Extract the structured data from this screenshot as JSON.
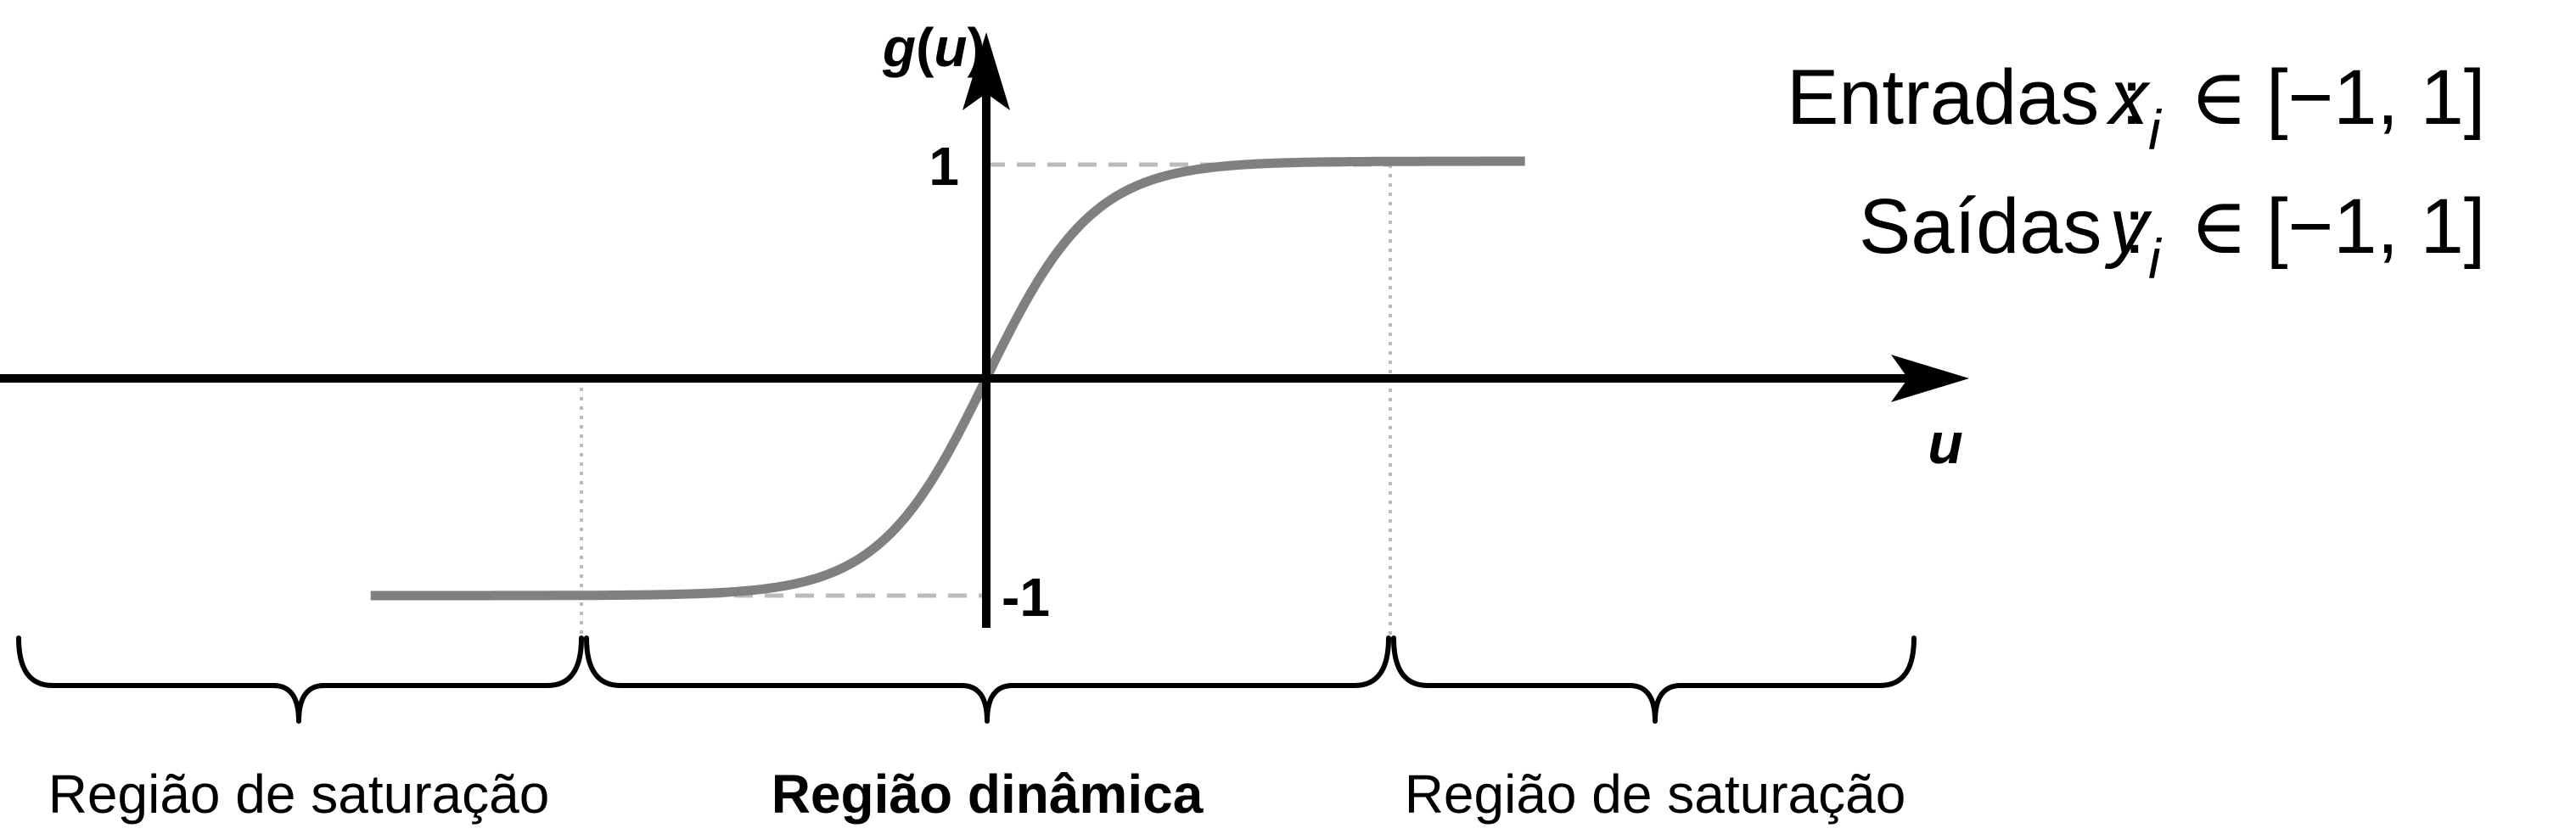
{
  "axes": {
    "y_label": {
      "function": "g",
      "open_paren": "(",
      "variable": "u",
      "close_paren": ")"
    },
    "x_label": "u",
    "tick_upper": "1",
    "tick_lower": "-1"
  },
  "curve": {
    "function": "tanh",
    "steepness": 1.8,
    "u_min": -3.2,
    "u_max": 2.8,
    "saturation_u": 2.1,
    "y_max": 1,
    "y_min": -1
  },
  "domain_note": {
    "inputs": {
      "label": "Entradas :",
      "var": "x",
      "sub": "i",
      "relation": "∈",
      "interval": "[−1, 1]"
    },
    "outputs": {
      "label": "Saídas :",
      "var": "y",
      "sub": "i",
      "relation": "∈",
      "interval": "[−1, 1]"
    }
  },
  "regions": {
    "left": "Região de saturação",
    "middle": "Região dinâmica",
    "right": "Região de saturação"
  },
  "colors": {
    "axis": "#000000",
    "curve": "#808080",
    "guide": "#bbbbbb",
    "text": "#000000"
  }
}
